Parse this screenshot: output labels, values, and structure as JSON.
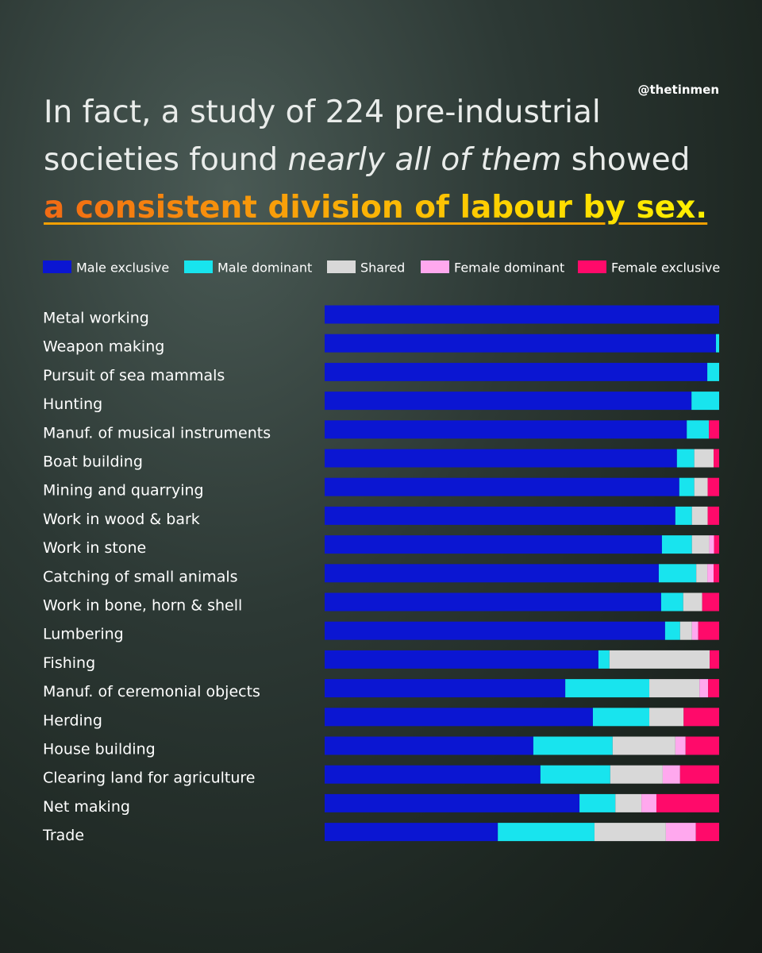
{
  "credit": "@thetinmen",
  "chart_data": {
    "type": "stacked-bar-horizontal",
    "title_prefix": "In fact, a study of 224 pre-industrial societies found",
    "title_emphasis": "nearly all of them",
    "title_suffix": "showed",
    "title_highlight": "a consistent division of labour by sex.",
    "xlim": [
      0,
      100
    ],
    "categories": [
      "Metal working",
      "Weapon making",
      "Pursuit of sea mammals",
      "Hunting",
      "Manuf. of musical instruments",
      "Boat building",
      "Mining and quarrying",
      "Work in wood & bark",
      "Work in stone",
      "Catching of small animals",
      "Work in bone, horn & shell",
      "Lumbering",
      "Fishing",
      "Manuf. of ceremonial objects",
      "Herding",
      "House building",
      "Clearing land for agriculture",
      "Net making",
      "Trade"
    ],
    "series": [
      {
        "name": "Male exclusive",
        "color": "#0b16d2",
        "values": [
          100,
          99.2,
          97.0,
          93.0,
          91.8,
          89.3,
          89.9,
          88.9,
          85.5,
          84.7,
          85.3,
          86.3,
          69.4,
          61.0,
          68.0,
          52.9,
          54.7,
          64.6,
          43.9
        ]
      },
      {
        "name": "Male dominant",
        "color": "#18e4ee",
        "values": [
          0,
          0.8,
          3.0,
          7.0,
          5.6,
          4.4,
          3.8,
          4.2,
          7.6,
          9.5,
          5.6,
          3.8,
          2.8,
          21.3,
          14.3,
          20.1,
          17.7,
          9.1,
          24.5
        ]
      },
      {
        "name": "Shared",
        "color": "#d8d8d8",
        "values": [
          0,
          0,
          0,
          0,
          0,
          4.9,
          3.4,
          4.0,
          4.4,
          2.8,
          4.8,
          3.0,
          25.4,
          12.7,
          8.7,
          15.9,
          13.3,
          6.6,
          18.1
        ]
      },
      {
        "name": "Female dominant",
        "color": "#ffa8ee",
        "values": [
          0,
          0,
          0,
          0,
          0,
          0,
          0,
          0,
          1.2,
          1.6,
          0,
          1.6,
          0,
          2.2,
          0,
          2.6,
          4.4,
          3.8,
          7.6
        ]
      },
      {
        "name": "Female exclusive",
        "color": "#ff0a6a",
        "values": [
          0,
          0,
          0,
          0,
          2.6,
          1.4,
          2.9,
          2.9,
          1.3,
          1.4,
          4.3,
          5.3,
          2.4,
          2.8,
          9.0,
          8.5,
          9.9,
          15.9,
          5.9
        ]
      }
    ]
  }
}
